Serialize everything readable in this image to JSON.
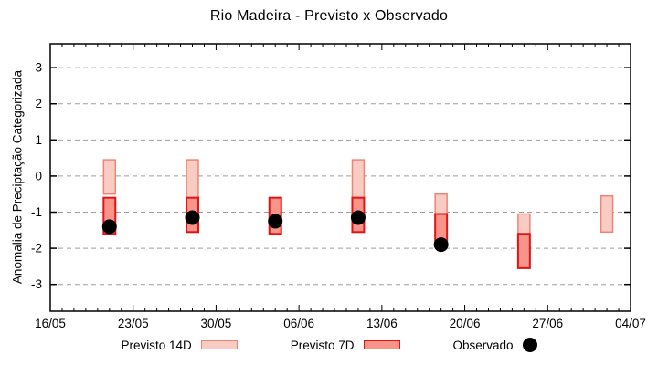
{
  "colors": {
    "p14_fill": "#f8cbc3",
    "p14_border": "#ef8474",
    "p7_fill": "#f9948b",
    "p7_border": "#e41312",
    "obs": "#000000",
    "grid": "#9e9e9e",
    "axis": "#000000"
  },
  "legend": [
    {
      "label": "Previsto 14D",
      "swatch": "previsto-14d"
    },
    {
      "label": "Previsto 7D",
      "swatch": "previsto-7d"
    },
    {
      "label": "Observado",
      "swatch": "observado"
    }
  ],
  "chart_data": {
    "type": "bar",
    "title": "Rio Madeira - Previsto x Observado",
    "xlabel": "",
    "ylabel": "Anomalia de Preciptação Categorizada",
    "ylim": [
      -3.74,
      3.66
    ],
    "yticks": [
      3,
      2,
      1,
      0,
      -1,
      -2,
      -3
    ],
    "grid": "horizontal-dashed",
    "x_tick_labels": [
      "16/05",
      "23/05",
      "30/05",
      "06/06",
      "13/06",
      "20/06",
      "27/06",
      "04/07"
    ],
    "x_range_days": 49,
    "x_major_every_days": 7,
    "bar_width_days": 1,
    "legend_position": "bottom",
    "series_note": "p14 = Previsto 14D range [top,bottom]; p7 = Previsto 7D range [top,bottom]; obs = Observado point",
    "groups": [
      {
        "date": "21/05",
        "day": 5,
        "p14": [
          0.45,
          -0.5
        ],
        "p7": [
          -0.6,
          -1.6
        ],
        "obs": -1.4
      },
      {
        "date": "28/05",
        "day": 12,
        "p14": [
          0.45,
          -0.6
        ],
        "p7": [
          -0.6,
          -1.55
        ],
        "obs": -1.15
      },
      {
        "date": "04/06",
        "day": 19,
        "p14": null,
        "p7": [
          -0.6,
          -1.6
        ],
        "obs": -1.25
      },
      {
        "date": "11/06",
        "day": 26,
        "p14": [
          0.45,
          -0.6
        ],
        "p7": [
          -0.6,
          -1.55
        ],
        "obs": -1.15
      },
      {
        "date": "18/06",
        "day": 33,
        "p14": [
          -0.5,
          -1.05
        ],
        "p7": [
          -1.05,
          -1.83
        ],
        "obs": -1.9
      },
      {
        "date": "25/06",
        "day": 40,
        "p14": [
          -1.05,
          -1.6
        ],
        "p7": [
          -1.6,
          -2.55
        ],
        "obs": null
      },
      {
        "date": "02/07",
        "day": 47,
        "p14": [
          -0.55,
          -1.55
        ],
        "p7": null,
        "obs": null
      }
    ]
  }
}
